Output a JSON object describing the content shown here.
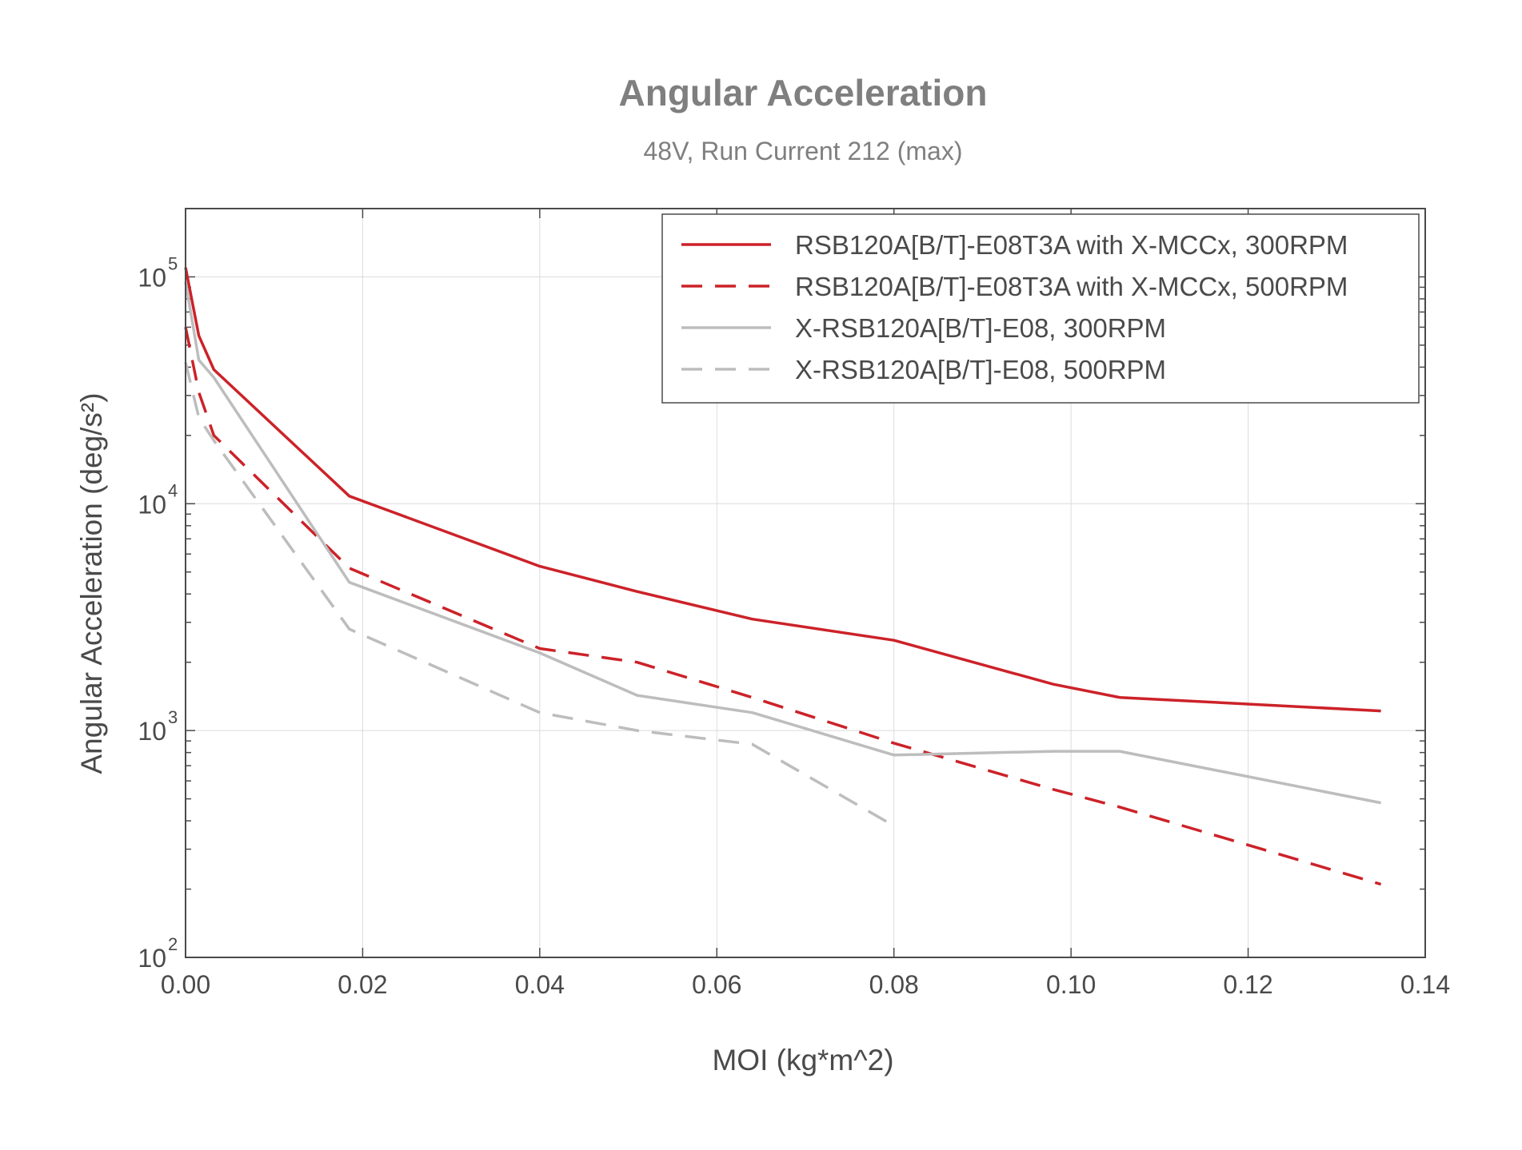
{
  "chart_data": {
    "type": "line",
    "title": "Angular Acceleration",
    "subtitle": "48V, Run Current 212 (max)",
    "xlabel": "MOI (kg*m^2)",
    "ylabel": "Angular Acceleration (deg/s²)",
    "xlim": [
      0,
      0.14
    ],
    "ylim": [
      100,
      200000
    ],
    "yscale": "log",
    "x_ticks": [
      "0.00",
      "0.02",
      "0.04",
      "0.06",
      "0.08",
      "0.10",
      "0.12",
      "0.14"
    ],
    "y_ticks": [
      {
        "base": "10",
        "exp": "2"
      },
      {
        "base": "10",
        "exp": "3"
      },
      {
        "base": "10",
        "exp": "4"
      },
      {
        "base": "10",
        "exp": "5"
      }
    ],
    "grid": true,
    "legend_position": "top-right",
    "series": [
      {
        "name": "RSB120A[B/T]-E08T3A with X-MCCx, 300RPM",
        "color": "#cc2229",
        "dash": "solid",
        "x": [
          0.0,
          0.0015,
          0.0032,
          0.0185,
          0.04,
          0.051,
          0.064,
          0.08,
          0.098,
          0.1055,
          0.135
        ],
        "y": [
          110000,
          55000,
          39000,
          10800,
          5300,
          4100,
          3100,
          2500,
          1600,
          1400,
          1220
        ]
      },
      {
        "name": "RSB120A[B/T]-E08T3A with X-MCCx, 500RPM",
        "color": "#cc2229",
        "dash": "dashed",
        "x": [
          0.0,
          0.0015,
          0.0032,
          0.0185,
          0.04,
          0.051,
          0.064,
          0.08,
          0.098,
          0.1055,
          0.135
        ],
        "y": [
          60000,
          31000,
          20000,
          5200,
          2300,
          2000,
          1400,
          880,
          550,
          460,
          210
        ]
      },
      {
        "name": "X-RSB120A[B/T]-E08, 300RPM",
        "color": "#bdbdbd",
        "dash": "solid",
        "x": [
          0.0,
          0.0015,
          0.0032,
          0.0185,
          0.04,
          0.051,
          0.064,
          0.08,
          0.098,
          0.1055,
          0.135
        ],
        "y": [
          95000,
          43000,
          36000,
          4500,
          2200,
          1430,
          1200,
          780,
          810,
          810,
          480
        ]
      },
      {
        "name": "X-RSB120A[B/T]-E08, 500RPM",
        "color": "#bdbdbd",
        "dash": "dashed",
        "x": [
          0.0,
          0.0015,
          0.0032,
          0.0185,
          0.04,
          0.051,
          0.064,
          0.08
        ],
        "y": [
          42000,
          24000,
          19000,
          2800,
          1200,
          1000,
          870,
          380
        ]
      }
    ]
  }
}
